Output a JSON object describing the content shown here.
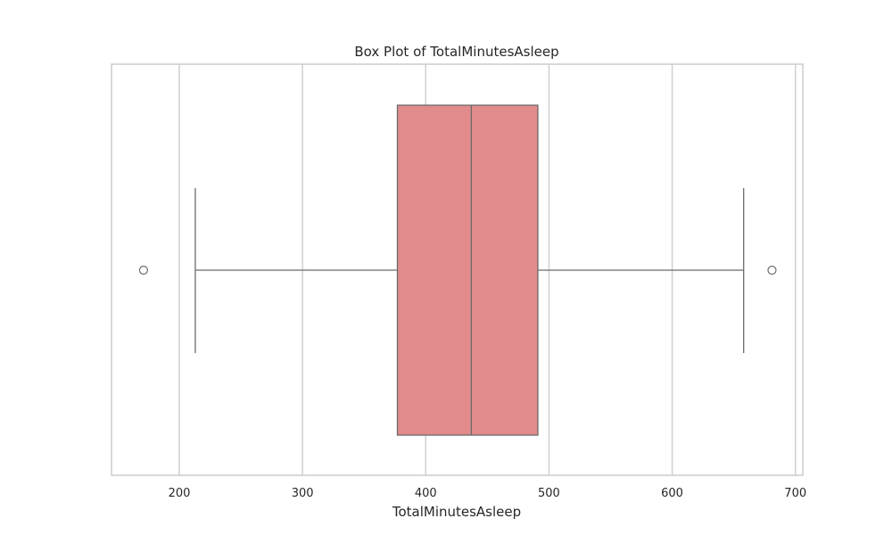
{
  "chart_data": {
    "type": "box",
    "title": "Box Plot of TotalMinutesAsleep",
    "xlabel": "TotalMinutesAsleep",
    "ylabel": "",
    "orientation": "horizontal",
    "xlim": [
      145,
      706
    ],
    "xticks": [
      200,
      300,
      400,
      500,
      600,
      700
    ],
    "grid": true,
    "box": {
      "whisker_low": 213,
      "q1": 377,
      "median": 437,
      "q3": 491,
      "whisker_high": 658,
      "outliers": [
        171,
        681
      ],
      "fill_color": "#e18b8c",
      "line_color": "#6b6b6b"
    }
  }
}
